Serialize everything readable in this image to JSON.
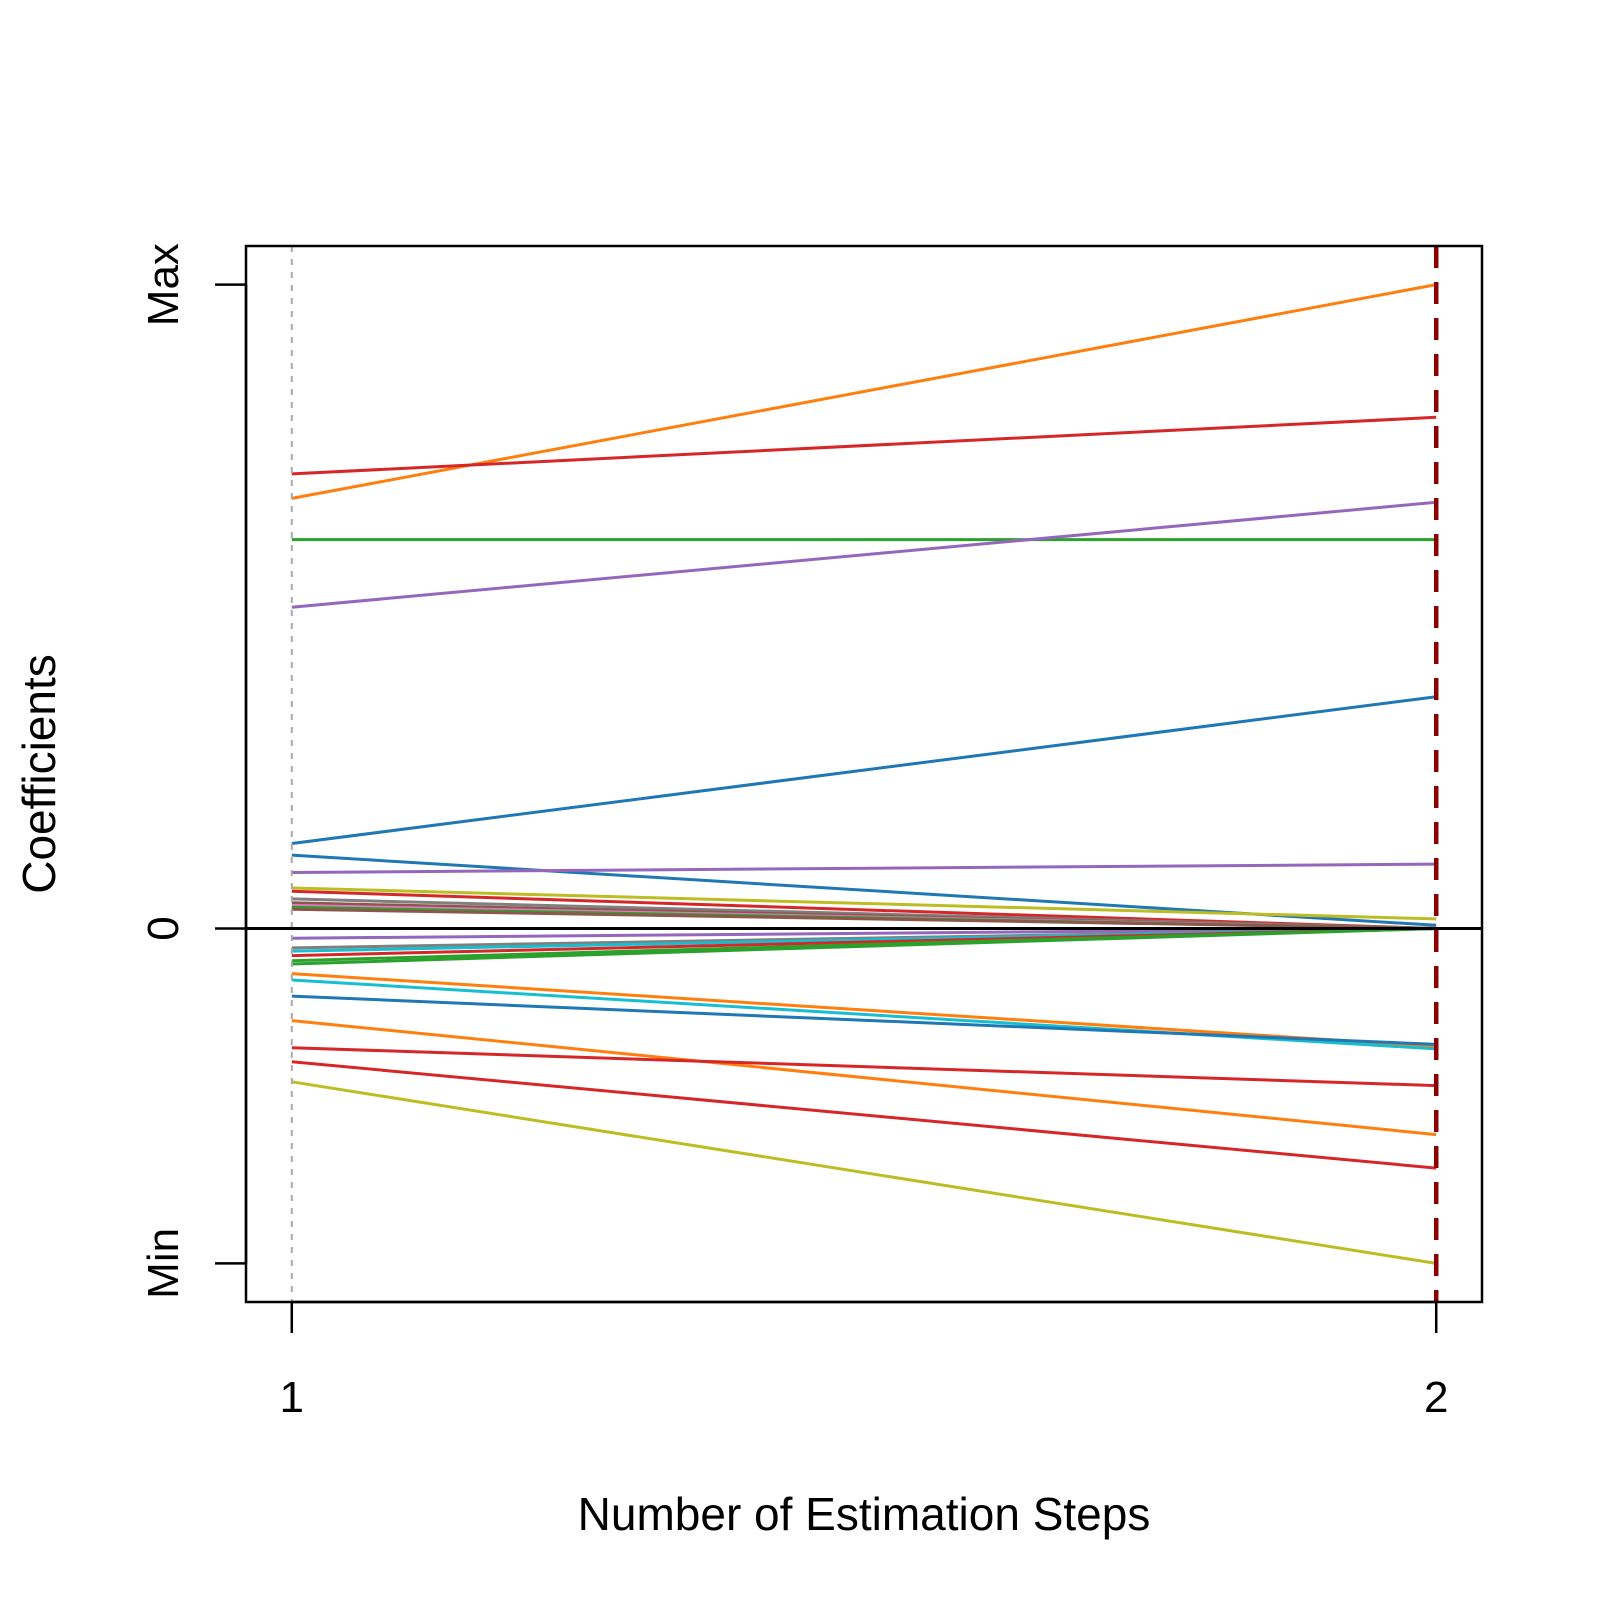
{
  "chart_data": {
    "type": "line",
    "title": "",
    "xlabel": "Number of Estimation Steps",
    "ylabel": "Coefficients",
    "x": [
      1,
      2
    ],
    "xticks": [
      "1",
      "2"
    ],
    "xlim": [
      0.96,
      2.04
    ],
    "yticks": [
      {
        "value": 1,
        "label": "Max"
      },
      {
        "value": 0,
        "label": "0"
      },
      {
        "value": -0.52,
        "label": "Min"
      }
    ],
    "ylim": [
      -0.58,
      1.06
    ],
    "zero_line": true,
    "start_marker": {
      "x": 1,
      "color": "#aaaaaa",
      "style": "dotted"
    },
    "selected_marker": {
      "x": 2,
      "color": "#8b0000",
      "style": "dashed"
    },
    "series": [
      {
        "color": "#ff7f0e",
        "values": [
          0.668,
          1.0
        ]
      },
      {
        "color": "#d62728",
        "values": [
          0.706,
          0.794
        ]
      },
      {
        "color": "#2ca02c",
        "values": [
          0.604,
          0.604
        ]
      },
      {
        "color": "#9467bd",
        "values": [
          0.499,
          0.662
        ]
      },
      {
        "color": "#1f77b4",
        "values": [
          0.132,
          0.36
        ]
      },
      {
        "color": "#1f77b4",
        "values": [
          0.114,
          0.005
        ]
      },
      {
        "color": "#9467bd",
        "values": [
          0.087,
          0.1
        ]
      },
      {
        "color": "#bcbd22",
        "values": [
          0.063,
          0.015
        ]
      },
      {
        "color": "#d62728",
        "values": [
          0.058,
          0.0
        ]
      },
      {
        "color": "#7f7f7f",
        "values": [
          0.046,
          0.0
        ]
      },
      {
        "color": "#8c564b",
        "values": [
          0.04,
          0.0
        ]
      },
      {
        "color": "#e377c2",
        "values": [
          0.036,
          0.0
        ]
      },
      {
        "color": "#2ca02c",
        "values": [
          0.033,
          0.0
        ]
      },
      {
        "color": "#8c564b",
        "values": [
          0.03,
          0.0
        ]
      },
      {
        "color": "#9467bd",
        "values": [
          -0.015,
          0.0
        ]
      },
      {
        "color": "#7f7f7f",
        "values": [
          -0.03,
          0.0
        ]
      },
      {
        "color": "#17becf",
        "values": [
          -0.035,
          0.0
        ]
      },
      {
        "color": "#d62728",
        "values": [
          -0.042,
          0.0
        ]
      },
      {
        "color": "#2ca02c",
        "values": [
          -0.05,
          0.0
        ]
      },
      {
        "color": "#2ca02c",
        "values": [
          -0.055,
          0.0
        ]
      },
      {
        "color": "#ff7f0e",
        "values": [
          -0.07,
          -0.183
        ]
      },
      {
        "color": "#17becf",
        "values": [
          -0.08,
          -0.187
        ]
      },
      {
        "color": "#1f77b4",
        "values": [
          -0.105,
          -0.18
        ]
      },
      {
        "color": "#ff7f0e",
        "values": [
          -0.143,
          -0.32
        ]
      },
      {
        "color": "#d62728",
        "values": [
          -0.185,
          -0.244
        ]
      },
      {
        "color": "#d62728",
        "values": [
          -0.207,
          -0.372
        ]
      },
      {
        "color": "#bcbd22",
        "values": [
          -0.238,
          -0.52
        ]
      }
    ]
  }
}
